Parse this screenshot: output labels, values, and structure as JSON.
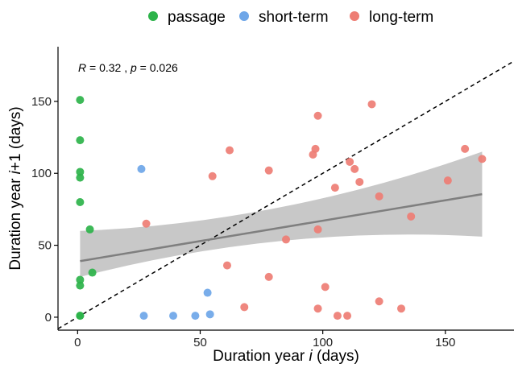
{
  "chart_data": {
    "type": "scatter",
    "xlabel": {
      "prefix": "Duration year ",
      "var": "i",
      "suffix": "  (days)"
    },
    "ylabel": {
      "prefix": "Duration year ",
      "var": "i",
      "suffix": "+1 (days)"
    },
    "xlim": [
      -8,
      178
    ],
    "ylim": [
      -9,
      188
    ],
    "x_ticks": [
      0,
      50,
      100,
      150
    ],
    "y_ticks": [
      0,
      50,
      100,
      150
    ],
    "x_tick_labels": [
      "0",
      "50",
      "100",
      "150"
    ],
    "y_tick_labels": [
      "0",
      "50",
      "100",
      "150"
    ],
    "grid": false,
    "legend_position": "top",
    "annotation": {
      "r_symbol": "R",
      "r_text": " = 0.32 , ",
      "p_symbol": "p",
      "p_text": " = 0.026"
    },
    "reference_line": {
      "type": "identity",
      "style": "dashed"
    },
    "regression": {
      "x0": 1,
      "x1": 165,
      "y0": 39,
      "y1": 85.5,
      "band_x": [
        1,
        165
      ],
      "band_lower": [
        28,
        56
      ],
      "band_upper": [
        60,
        115
      ],
      "line_color": "#7f7f7f",
      "band_color": "#c8c8c8"
    },
    "series": [
      {
        "name": "passage",
        "color": "#2db34a",
        "points": [
          [
            1,
            151
          ],
          [
            1,
            123
          ],
          [
            1,
            101
          ],
          [
            1,
            97
          ],
          [
            1,
            80
          ],
          [
            5,
            61
          ],
          [
            6,
            31
          ],
          [
            1,
            26
          ],
          [
            1,
            22
          ],
          [
            1,
            1
          ],
          [
            1,
            1
          ]
        ]
      },
      {
        "name": "short-term",
        "color": "#6ea6e8",
        "points": [
          [
            26,
            103
          ],
          [
            27,
            1
          ],
          [
            39,
            1
          ],
          [
            48,
            1
          ],
          [
            53,
            17
          ],
          [
            54,
            2
          ]
        ]
      },
      {
        "name": "long-term",
        "color": "#ee7d74",
        "points": [
          [
            28,
            65
          ],
          [
            55,
            98
          ],
          [
            62,
            116
          ],
          [
            61,
            36
          ],
          [
            68,
            7
          ],
          [
            78,
            102
          ],
          [
            78,
            28
          ],
          [
            85,
            54
          ],
          [
            96,
            113
          ],
          [
            97,
            117
          ],
          [
            98,
            140
          ],
          [
            98,
            61
          ],
          [
            98,
            6
          ],
          [
            101,
            21
          ],
          [
            105,
            90
          ],
          [
            106,
            1
          ],
          [
            110,
            1
          ],
          [
            111,
            108
          ],
          [
            113,
            103
          ],
          [
            115,
            94
          ],
          [
            120,
            148
          ],
          [
            123,
            84
          ],
          [
            123,
            11
          ],
          [
            132,
            6
          ],
          [
            136,
            70
          ],
          [
            151,
            95
          ],
          [
            158,
            117
          ],
          [
            165,
            110
          ]
        ]
      }
    ]
  }
}
